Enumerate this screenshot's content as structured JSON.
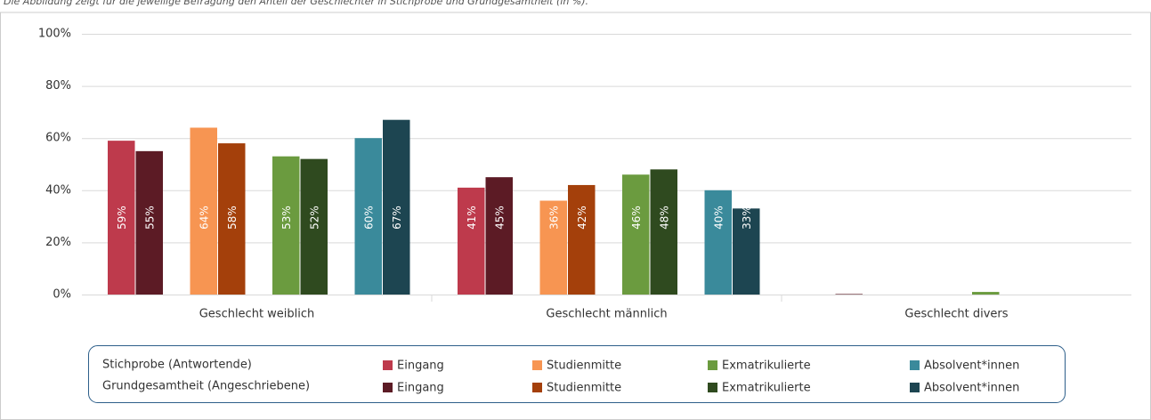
{
  "chart_data": {
    "type": "bar",
    "subtitle": "Die Abbildung zeigt für die jeweilige Befragung den Anteil der Geschlechter in Stichprobe und Grundgesamtheit (in %).",
    "categories": [
      "Geschlecht weiblich",
      "Geschlecht männlich",
      "Geschlecht divers"
    ],
    "ylim": [
      0,
      100
    ],
    "yticks": [
      {
        "value": 0,
        "label": "0%"
      },
      {
        "value": 20,
        "label": "20%"
      },
      {
        "value": 40,
        "label": "40%"
      },
      {
        "value": 60,
        "label": "60%"
      },
      {
        "value": 80,
        "label": "80%"
      },
      {
        "value": 100,
        "label": "100%"
      }
    ],
    "grid": true,
    "legend_rows": [
      "Stichprobe (Antwortende)",
      "Grundgesamtheit (Angeschriebene)"
    ],
    "series": [
      {
        "name": "Eingang",
        "row": 0,
        "color": "#be3a4c",
        "values": [
          59,
          41,
          0
        ],
        "value_labels": [
          "59%",
          "41%",
          null
        ]
      },
      {
        "name": "Eingang",
        "row": 1,
        "color": "#5c1b25",
        "values": [
          55,
          45,
          0.2
        ],
        "value_labels": [
          "55%",
          "45%",
          null
        ]
      },
      {
        "name": "Studienmitte",
        "row": 0,
        "color": "#f79552",
        "values": [
          64,
          36,
          0
        ],
        "value_labels": [
          "64%",
          "36%",
          null
        ]
      },
      {
        "name": "Studienmitte",
        "row": 1,
        "color": "#a4400b",
        "values": [
          58,
          42,
          0
        ],
        "value_labels": [
          "58%",
          "42%",
          null
        ]
      },
      {
        "name": "Exmatrikulierte",
        "row": 0,
        "color": "#6b9b3f",
        "values": [
          53,
          46,
          1
        ],
        "value_labels": [
          "53%",
          "46%",
          null
        ]
      },
      {
        "name": "Exmatrikulierte",
        "row": 1,
        "color": "#2f4a1f",
        "values": [
          52,
          48,
          0
        ],
        "value_labels": [
          "52%",
          "48%",
          null
        ]
      },
      {
        "name": "Absolvent*innen",
        "row": 0,
        "color": "#3a8a9b",
        "values": [
          60,
          40,
          0
        ],
        "value_labels": [
          "60%",
          "40%",
          null
        ]
      },
      {
        "name": "Absolvent*innen",
        "row": 1,
        "color": "#1d4551",
        "values": [
          67,
          33,
          0
        ],
        "value_labels": [
          "67%",
          "33%",
          null
        ]
      }
    ]
  }
}
